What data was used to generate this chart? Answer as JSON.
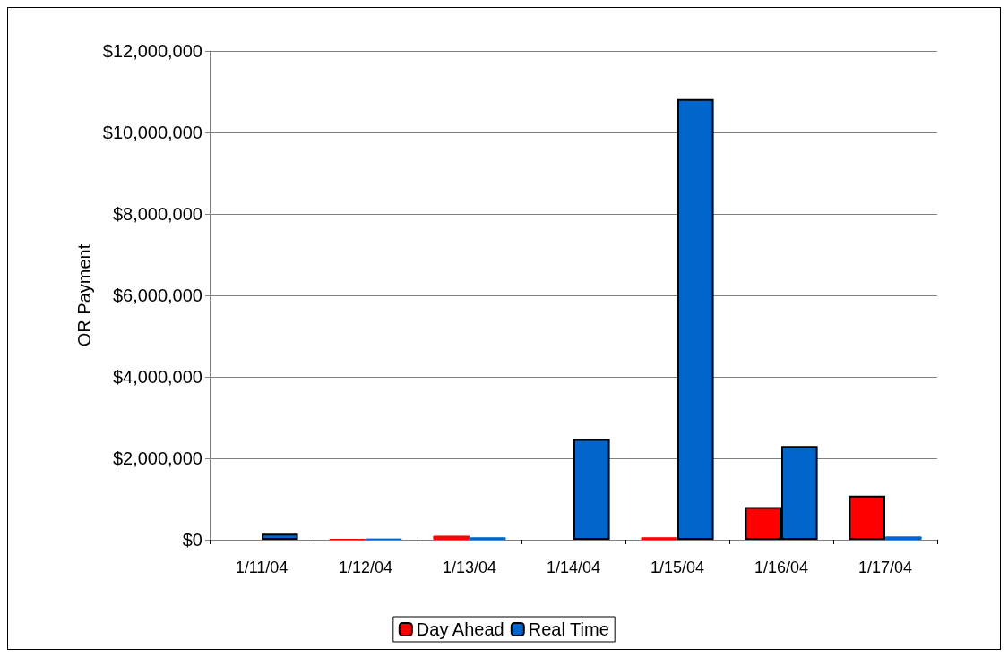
{
  "chart_data": {
    "type": "bar",
    "ylabel": "OR Payment",
    "categories": [
      "1/11/04",
      "1/12/04",
      "1/13/04",
      "1/14/04",
      "1/15/04",
      "1/16/04",
      "1/17/04"
    ],
    "series": [
      {
        "name": "Day Ahead",
        "color": "#ff0000",
        "values": [
          null,
          20000,
          100000,
          null,
          60000,
          800000,
          1080000
        ]
      },
      {
        "name": "Real Time",
        "color": "#0066cc",
        "values": [
          150000,
          30000,
          60000,
          2470000,
          10820000,
          2300000,
          80000
        ]
      }
    ],
    "ylim": [
      0,
      12000000
    ],
    "yticks": [
      {
        "value": 0,
        "label": "$0"
      },
      {
        "value": 2000000,
        "label": "$2,000,000"
      },
      {
        "value": 4000000,
        "label": "$4,000,000"
      },
      {
        "value": 6000000,
        "label": "$6,000,000"
      },
      {
        "value": 8000000,
        "label": "$8,000,000"
      },
      {
        "value": 10000000,
        "label": "$10,000,000"
      },
      {
        "value": 12000000,
        "label": "$12,000,000"
      }
    ],
    "grid": "y",
    "legend": "bottom"
  }
}
